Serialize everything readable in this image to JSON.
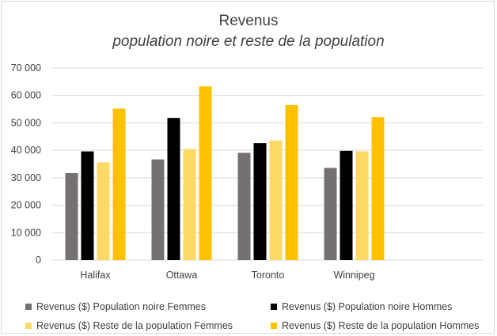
{
  "chart_data": {
    "type": "bar",
    "title": "Revenus",
    "subtitle": "population noire et reste de la population",
    "categories": [
      "Halifax",
      "Ottawa",
      "Toronto",
      "Winnipeg"
    ],
    "ylim": [
      0,
      70000
    ],
    "yticks": [
      "0",
      "10 000",
      "20 000",
      "30 000",
      "40 000",
      "50 000",
      "60 000",
      "70 000"
    ],
    "ytick_values": [
      0,
      10000,
      20000,
      30000,
      40000,
      50000,
      60000,
      70000
    ],
    "grid": true,
    "legend_position": "bottom",
    "series": [
      {
        "name": "Revenus ($) Population noire Femmes",
        "color": "#767171",
        "values": [
          31700,
          36700,
          39100,
          33600
        ]
      },
      {
        "name": "Revenus ($) Population noire Hommes",
        "color": "#000000",
        "values": [
          39600,
          51800,
          42600,
          39800
        ]
      },
      {
        "name": "Revenus ($) Reste de la population Femmes",
        "color": "#ffd966",
        "values": [
          35600,
          40500,
          43600,
          39600
        ]
      },
      {
        "name": "Revenus ($) Reste de la population Hommes",
        "color": "#ffc000",
        "values": [
          55200,
          63300,
          56500,
          52100
        ]
      }
    ]
  }
}
